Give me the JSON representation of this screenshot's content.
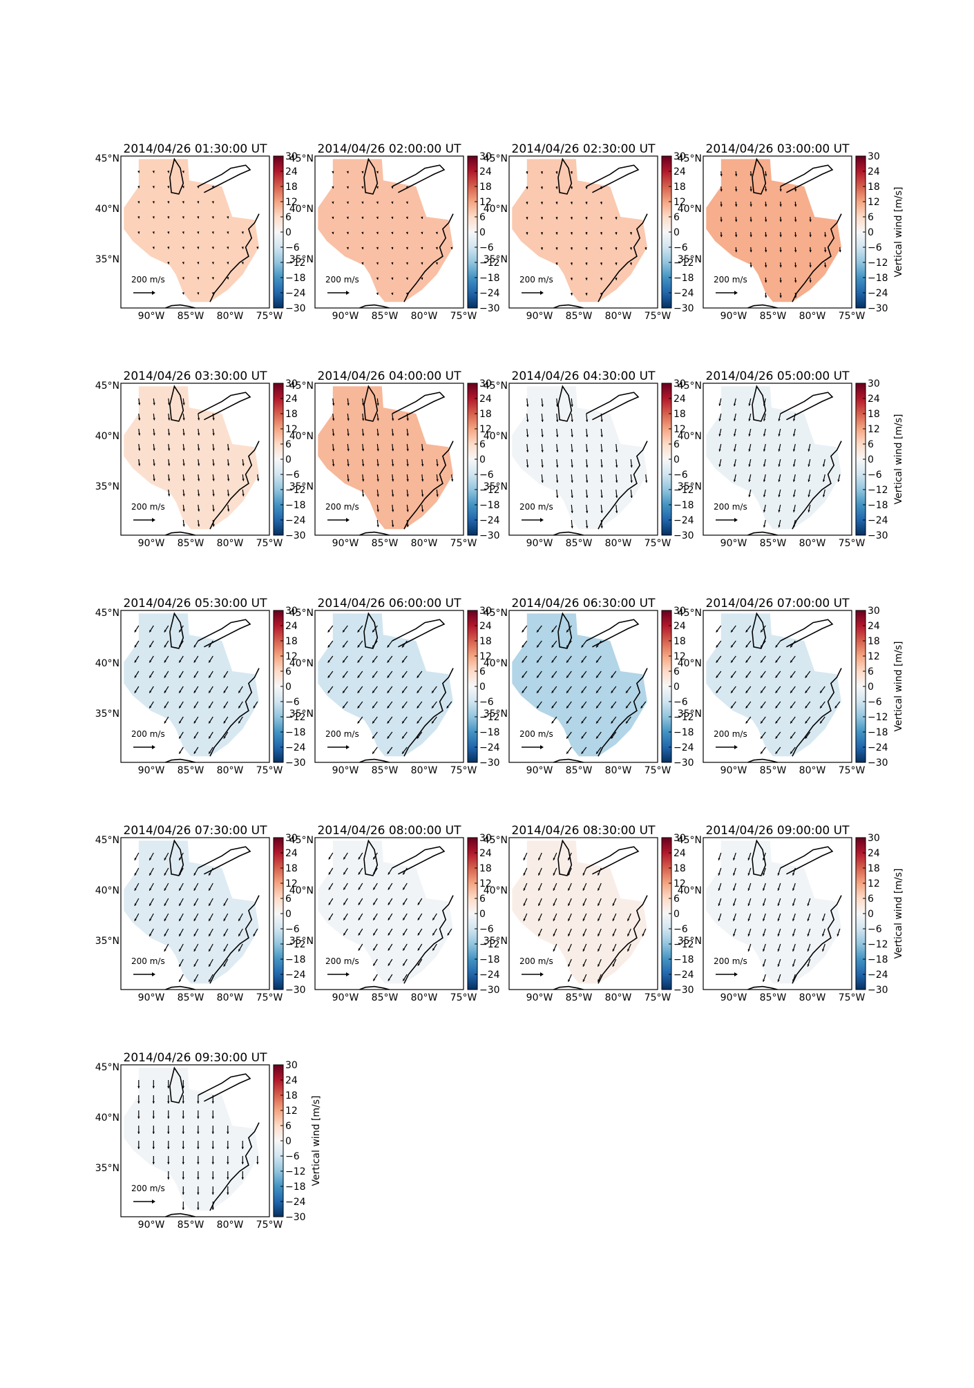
{
  "figure": {
    "colorbar_label": "Vertical wind [m/s]",
    "colormap": [
      "#053061",
      "#2166ac",
      "#4393c3",
      "#92c5de",
      "#d1e5f0",
      "#f7f7f7",
      "#fddbc7",
      "#f4a582",
      "#d6604d",
      "#b2182b",
      "#67001f"
    ],
    "colorbar_ticks": [
      "30",
      "24",
      "18",
      "12",
      "6",
      "0",
      "−6",
      "−12",
      "−18",
      "−24",
      "−30"
    ],
    "lat_ticks": [
      "45°N",
      "40°N",
      "35°N"
    ],
    "lon_ticks": [
      "90°W",
      "85°W",
      "80°W",
      "75°W"
    ],
    "quiver_key_label": "200 m/s"
  },
  "chart_data": [
    {
      "type": "heatmap",
      "title": "2014/04/26 01:30:00 UT",
      "vertical_wind": 7,
      "arrow": {
        "u": 0.05,
        "v": -0.2
      },
      "colorbar_label": "",
      "xlim": [
        -94,
        -75
      ],
      "ylim": [
        30,
        45
      ]
    },
    {
      "type": "heatmap",
      "title": "2014/04/26 02:00:00 UT",
      "vertical_wind": 9,
      "arrow": {
        "u": 0.05,
        "v": -0.25
      },
      "colorbar_label": "",
      "xlim": [
        -94,
        -75
      ],
      "ylim": [
        30,
        45
      ]
    },
    {
      "type": "heatmap",
      "title": "2014/04/26 02:30:00 UT",
      "vertical_wind": 8,
      "arrow": {
        "u": 0.05,
        "v": -0.3
      },
      "colorbar_label": "",
      "xlim": [
        -94,
        -75
      ],
      "ylim": [
        30,
        45
      ]
    },
    {
      "type": "heatmap",
      "title": "2014/04/26 03:00:00 UT",
      "vertical_wind": 11,
      "arrow": {
        "u": 0.05,
        "v": -0.6
      },
      "colorbar_label": "Vertical wind [m/s]",
      "xlim": [
        -94,
        -75
      ],
      "ylim": [
        30,
        45
      ]
    },
    {
      "type": "heatmap",
      "title": "2014/04/26 03:30:00 UT",
      "vertical_wind": 5,
      "arrow": {
        "u": 0.1,
        "v": -0.8
      },
      "colorbar_label": "",
      "xlim": [
        -94,
        -75
      ],
      "ylim": [
        30,
        45
      ]
    },
    {
      "type": "heatmap",
      "title": "2014/04/26 04:00:00 UT",
      "vertical_wind": 10,
      "arrow": {
        "u": 0.1,
        "v": -0.85
      },
      "colorbar_label": "",
      "xlim": [
        -94,
        -75
      ],
      "ylim": [
        30,
        45
      ]
    },
    {
      "type": "heatmap",
      "title": "2014/04/26 04:30:00 UT",
      "vertical_wind": -1,
      "arrow": {
        "u": 0.1,
        "v": -1.0
      },
      "colorbar_label": "",
      "xlim": [
        -94,
        -75
      ],
      "ylim": [
        30,
        45
      ]
    },
    {
      "type": "heatmap",
      "title": "2014/04/26 05:00:00 UT",
      "vertical_wind": -2,
      "arrow": {
        "u": -0.2,
        "v": -0.9
      },
      "colorbar_label": "Vertical wind [m/s]",
      "xlim": [
        -94,
        -75
      ],
      "ylim": [
        30,
        45
      ]
    },
    {
      "type": "heatmap",
      "title": "2014/04/26 05:30:00 UT",
      "vertical_wind": -5,
      "arrow": {
        "u": -0.5,
        "v": -0.8
      },
      "colorbar_label": "",
      "xlim": [
        -94,
        -75
      ],
      "ylim": [
        30,
        45
      ]
    },
    {
      "type": "heatmap",
      "title": "2014/04/26 06:00:00 UT",
      "vertical_wind": -6,
      "arrow": {
        "u": -0.6,
        "v": -0.8
      },
      "colorbar_label": "",
      "xlim": [
        -94,
        -75
      ],
      "ylim": [
        30,
        45
      ]
    },
    {
      "type": "heatmap",
      "title": "2014/04/26 06:30:00 UT",
      "vertical_wind": -9,
      "arrow": {
        "u": -0.6,
        "v": -0.8
      },
      "colorbar_label": "",
      "xlim": [
        -94,
        -75
      ],
      "ylim": [
        30,
        45
      ]
    },
    {
      "type": "heatmap",
      "title": "2014/04/26 07:00:00 UT",
      "vertical_wind": -5,
      "arrow": {
        "u": -0.6,
        "v": -0.8
      },
      "colorbar_label": "Vertical wind [m/s]",
      "xlim": [
        -94,
        -75
      ],
      "ylim": [
        30,
        45
      ]
    },
    {
      "type": "heatmap",
      "title": "2014/04/26 07:30:00 UT",
      "vertical_wind": -4,
      "arrow": {
        "u": -0.5,
        "v": -0.9
      },
      "colorbar_label": "",
      "xlim": [
        -94,
        -75
      ],
      "ylim": [
        30,
        45
      ]
    },
    {
      "type": "heatmap",
      "title": "2014/04/26 08:00:00 UT",
      "vertical_wind": -1,
      "arrow": {
        "u": -0.5,
        "v": -0.8
      },
      "colorbar_label": "",
      "xlim": [
        -94,
        -75
      ],
      "ylim": [
        30,
        45
      ]
    },
    {
      "type": "heatmap",
      "title": "2014/04/26 08:30:00 UT",
      "vertical_wind": 2,
      "arrow": {
        "u": -0.4,
        "v": -0.9
      },
      "colorbar_label": "",
      "xlim": [
        -94,
        -75
      ],
      "ylim": [
        30,
        45
      ]
    },
    {
      "type": "heatmap",
      "title": "2014/04/26 09:00:00 UT",
      "vertical_wind": -1,
      "arrow": {
        "u": -0.3,
        "v": -0.9
      },
      "colorbar_label": "Vertical wind [m/s]",
      "xlim": [
        -94,
        -75
      ],
      "ylim": [
        30,
        45
      ]
    },
    {
      "type": "heatmap",
      "title": "2014/04/26 09:30:00 UT",
      "vertical_wind": -1,
      "arrow": {
        "u": 0,
        "v": -1.0
      },
      "colorbar_label": "Vertical wind [m/s]",
      "xlim": [
        -94,
        -75
      ],
      "ylim": [
        30,
        45
      ]
    }
  ]
}
